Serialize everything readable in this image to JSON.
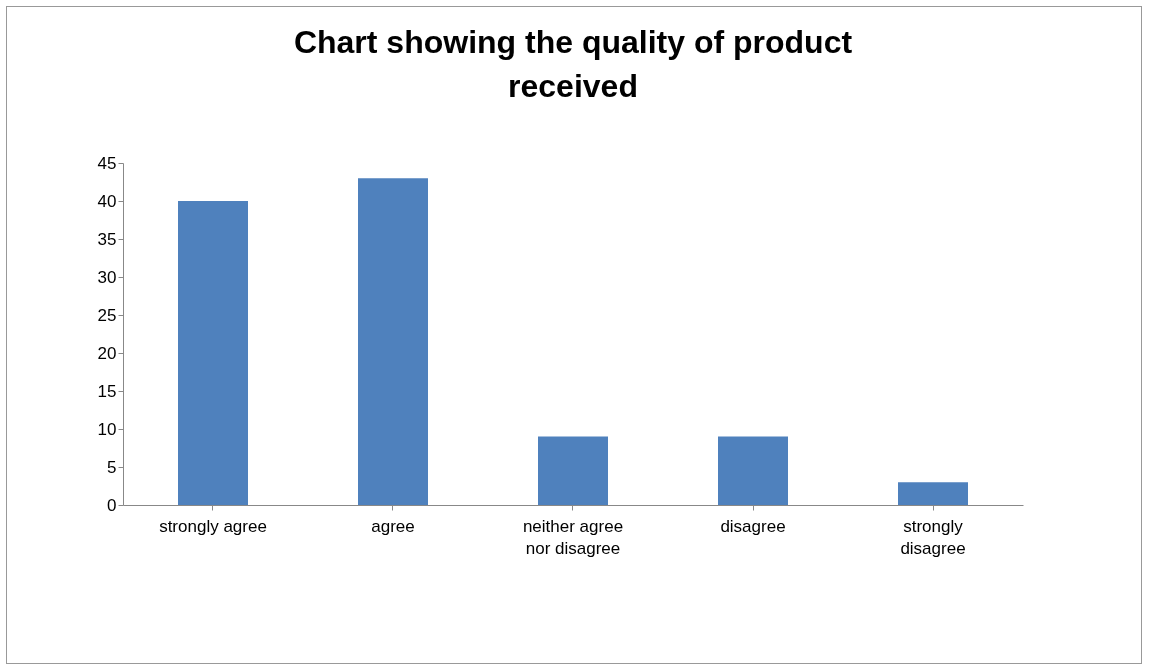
{
  "chart_data": {
    "type": "bar",
    "title": "Chart  showing the quality of product received",
    "categories": [
      "strongly agree",
      "agree",
      "neither agree nor disagree",
      "disagree",
      "strongly disagree"
    ],
    "values": [
      40,
      43,
      9,
      9,
      3
    ],
    "color": "#4f81bd",
    "ylim": [
      0,
      45
    ],
    "yticks": [
      0,
      5,
      10,
      15,
      20,
      25,
      30,
      35,
      40,
      45
    ],
    "grid": false
  }
}
